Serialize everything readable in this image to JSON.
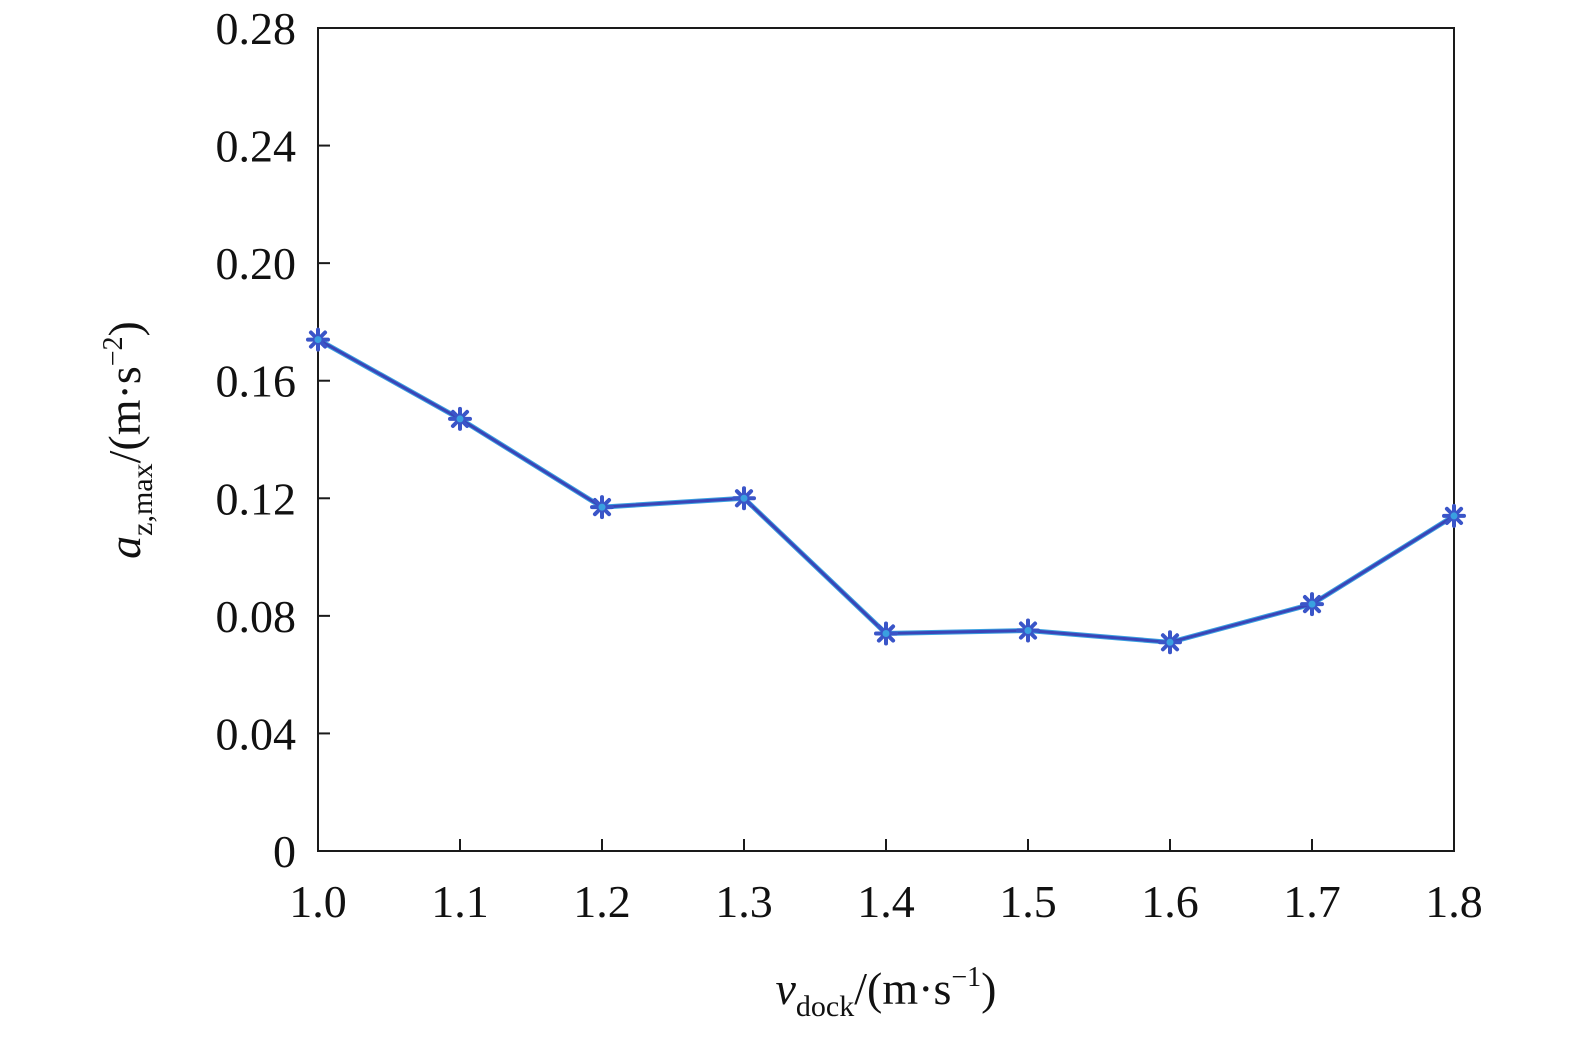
{
  "chart_data": {
    "type": "line",
    "title": "",
    "x": [
      1.0,
      1.1,
      1.2,
      1.3,
      1.4,
      1.5,
      1.6,
      1.7,
      1.8
    ],
    "series": [
      {
        "values": [
          0.174,
          0.147,
          0.117,
          0.12,
          0.074,
          0.075,
          0.071,
          0.084,
          0.114
        ]
      }
    ],
    "xlim": [
      1.0,
      1.8
    ],
    "ylim": [
      0,
      0.28
    ],
    "x_ticks": [
      "1.0",
      "1.1",
      "1.2",
      "1.3",
      "1.4",
      "1.5",
      "1.6",
      "1.7",
      "1.8"
    ],
    "y_ticks": [
      "0",
      "0.04",
      "0.08",
      "0.12",
      "0.16",
      "0.20",
      "0.24",
      "0.28"
    ],
    "xlabel": {
      "main": "v",
      "subscript": "dock",
      "unit_prefix": "/(m·s",
      "superscript": "−1",
      "suffix": ")"
    },
    "ylabel": {
      "main": "a",
      "subscript": "z,max",
      "unit_prefix": "/(m·s",
      "superscript": "−2",
      "suffix": ")"
    },
    "marker": "asterisk",
    "grid": false,
    "colors": {
      "line": "#3a45b8",
      "line_highlight": "#3aa0e0",
      "marker": "#3a55c8",
      "axis": "#1a1a1a"
    }
  }
}
